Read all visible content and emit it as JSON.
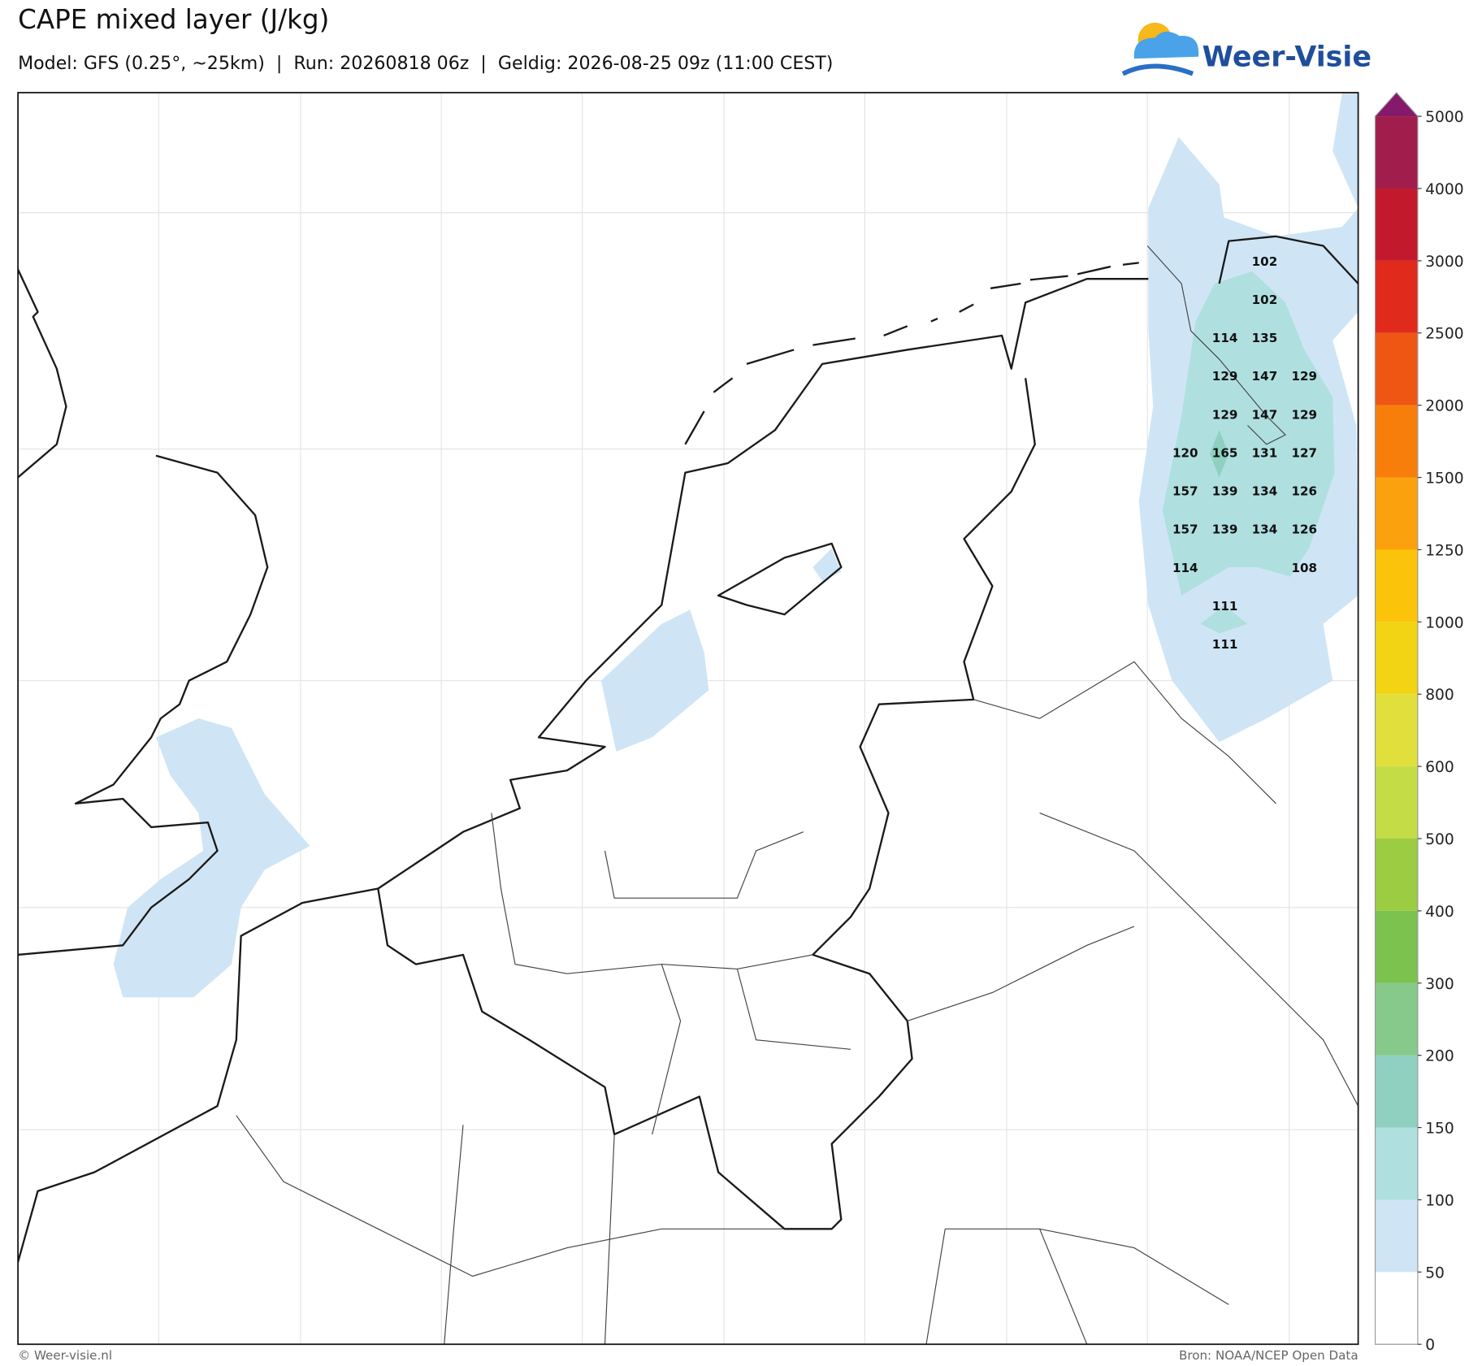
{
  "header": {
    "title": "CAPE mixed layer (J/kg)",
    "subtitle": "Model: GFS (0.25°, ~25km)  |  Run: 20260818 06z  |  Geldig: 2026-08-25 09z (11:00 CEST)",
    "logo": "Weer-Visie"
  },
  "colorbar": {
    "levels": [
      0,
      50,
      100,
      150,
      200,
      300,
      400,
      500,
      600,
      800,
      1000,
      1250,
      1500,
      2000,
      2500,
      3000,
      4000,
      5000
    ],
    "colors": [
      "#ffffff",
      "#cfe5f5",
      "#b0dfe0",
      "#8fd0c0",
      "#86c98a",
      "#7cc24e",
      "#9ccc42",
      "#c4dc45",
      "#e0df3c",
      "#f2d414",
      "#fbc40a",
      "#fba10e",
      "#f87e0b",
      "#ef5613",
      "#e02a1c",
      "#c21a2c",
      "#a11e4c"
    ],
    "extend_color": "#85196b"
  },
  "point_values": [
    [
      null,
      null,
      102,
      null
    ],
    [
      null,
      null,
      102,
      null
    ],
    [
      null,
      114,
      135,
      null
    ],
    [
      null,
      129,
      147,
      129
    ],
    [
      null,
      129,
      147,
      129
    ],
    [
      120,
      165,
      131,
      127
    ],
    [
      157,
      139,
      134,
      126
    ],
    [
      157,
      139,
      134,
      126
    ],
    [
      114,
      null,
      null,
      108
    ],
    [
      null,
      111,
      null,
      null
    ],
    [
      null,
      111,
      null,
      null
    ]
  ],
  "footer": {
    "left": "© Weer-visie.nl",
    "right": "Bron: NOAA/NCEP Open Data"
  }
}
